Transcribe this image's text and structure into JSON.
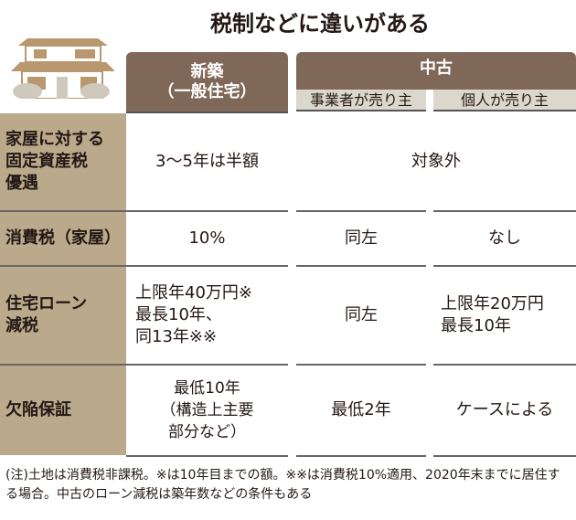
{
  "title": "税制などに違いがある",
  "columns": {
    "new": "新築\n（一般住宅）",
    "used": "中古",
    "used_business": "事業者が売り主",
    "used_individual": "個人が売り主"
  },
  "rows": [
    {
      "label": "家屋に対する\n固定資産税\n優遇",
      "new": "3〜5年は半額",
      "used": "対象外"
    },
    {
      "label": "消費税（家屋）",
      "new": "10%",
      "business": "同左",
      "individual": "なし"
    },
    {
      "label": "住宅ローン\n減税",
      "new": "上限年40万円※\n最長10年、\n同13年※※",
      "business": "同左",
      "individual": "上限年20万円\n最長10年"
    },
    {
      "label": "欠陥保証",
      "new": "最低10年\n（構造上主要\n部分など）",
      "business": "最低2年",
      "individual": "ケースによる"
    }
  ],
  "note": "(注)土地は消費税非課税。※は10年目までの額。※※は消費税10%適用、2020年末までに居住する場合。中古のローン減税は築年数などの条件もある",
  "colors": {
    "header": "#806858",
    "label_bg": "#baa98a",
    "subheader": "#dcd7cc"
  },
  "icon": "house-icon"
}
